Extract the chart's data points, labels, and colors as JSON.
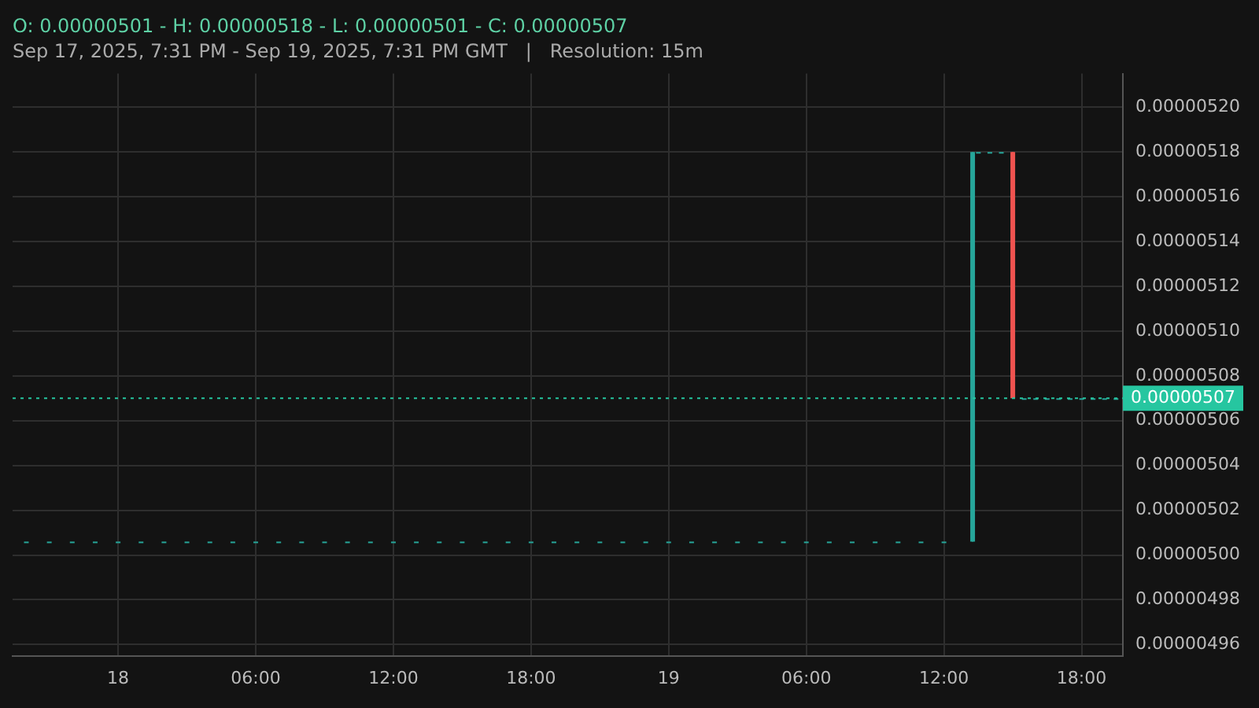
{
  "chart_data": {
    "type": "candlestick",
    "title": "O: 0.00000501 - H: 0.00000518 - L: 0.00000501 - C: 0.00000507",
    "subtitle": "Sep 17, 2025, 7:31 PM - Sep 19, 2025, 7:31 PM GMT   |   Resolution: 15m",
    "x": [
      "2025-09-17T20:00",
      "2025-09-17T21:00",
      "2025-09-17T22:00",
      "2025-09-17T23:00",
      "2025-09-18T00:00",
      "2025-09-18T01:00",
      "2025-09-18T02:00",
      "2025-09-18T03:00",
      "2025-09-18T04:00",
      "2025-09-18T05:00",
      "2025-09-18T06:00",
      "2025-09-18T07:00",
      "2025-09-18T08:00",
      "2025-09-18T09:00",
      "2025-09-18T10:00",
      "2025-09-18T11:00",
      "2025-09-18T12:00",
      "2025-09-18T13:00",
      "2025-09-18T14:00",
      "2025-09-18T15:00",
      "2025-09-18T16:00",
      "2025-09-18T17:00",
      "2025-09-18T18:00",
      "2025-09-18T19:00",
      "2025-09-18T20:00",
      "2025-09-18T21:00",
      "2025-09-18T22:00",
      "2025-09-18T23:00",
      "2025-09-19T00:00",
      "2025-09-19T01:00",
      "2025-09-19T02:00",
      "2025-09-19T03:00",
      "2025-09-19T04:00",
      "2025-09-19T05:00",
      "2025-09-19T06:00",
      "2025-09-19T07:00",
      "2025-09-19T08:00",
      "2025-09-19T09:00",
      "2025-09-19T10:00",
      "2025-09-19T11:00",
      "2025-09-19T12:00",
      "2025-09-19T13:15",
      "2025-09-19T13:30",
      "2025-09-19T14:00",
      "2025-09-19T14:30",
      "2025-09-19T15:00",
      "2025-09-19T15:30",
      "2025-09-19T16:00",
      "2025-09-19T16:30",
      "2025-09-19T17:00",
      "2025-09-19T17:30",
      "2025-09-19T18:00",
      "2025-09-19T18:30",
      "2025-09-19T19:00",
      "2025-09-19T19:30"
    ],
    "ohlc": [
      [
        5.006e-06,
        5.006e-06,
        5.006e-06,
        5.006e-06
      ],
      [
        5.006e-06,
        5.006e-06,
        5.006e-06,
        5.006e-06
      ],
      [
        5.006e-06,
        5.006e-06,
        5.006e-06,
        5.006e-06
      ],
      [
        5.006e-06,
        5.006e-06,
        5.006e-06,
        5.006e-06
      ],
      [
        5.006e-06,
        5.006e-06,
        5.006e-06,
        5.006e-06
      ],
      [
        5.006e-06,
        5.006e-06,
        5.006e-06,
        5.006e-06
      ],
      [
        5.006e-06,
        5.006e-06,
        5.006e-06,
        5.006e-06
      ],
      [
        5.006e-06,
        5.006e-06,
        5.006e-06,
        5.006e-06
      ],
      [
        5.006e-06,
        5.006e-06,
        5.006e-06,
        5.006e-06
      ],
      [
        5.006e-06,
        5.006e-06,
        5.006e-06,
        5.006e-06
      ],
      [
        5.006e-06,
        5.006e-06,
        5.006e-06,
        5.006e-06
      ],
      [
        5.006e-06,
        5.006e-06,
        5.006e-06,
        5.006e-06
      ],
      [
        5.006e-06,
        5.006e-06,
        5.006e-06,
        5.006e-06
      ],
      [
        5.006e-06,
        5.006e-06,
        5.006e-06,
        5.006e-06
      ],
      [
        5.006e-06,
        5.006e-06,
        5.006e-06,
        5.006e-06
      ],
      [
        5.006e-06,
        5.006e-06,
        5.006e-06,
        5.006e-06
      ],
      [
        5.006e-06,
        5.006e-06,
        5.006e-06,
        5.006e-06
      ],
      [
        5.006e-06,
        5.006e-06,
        5.006e-06,
        5.006e-06
      ],
      [
        5.006e-06,
        5.006e-06,
        5.006e-06,
        5.006e-06
      ],
      [
        5.006e-06,
        5.006e-06,
        5.006e-06,
        5.006e-06
      ],
      [
        5.006e-06,
        5.006e-06,
        5.006e-06,
        5.006e-06
      ],
      [
        5.006e-06,
        5.006e-06,
        5.006e-06,
        5.006e-06
      ],
      [
        5.006e-06,
        5.006e-06,
        5.006e-06,
        5.006e-06
      ],
      [
        5.006e-06,
        5.006e-06,
        5.006e-06,
        5.006e-06
      ],
      [
        5.006e-06,
        5.006e-06,
        5.006e-06,
        5.006e-06
      ],
      [
        5.006e-06,
        5.006e-06,
        5.006e-06,
        5.006e-06
      ],
      [
        5.006e-06,
        5.006e-06,
        5.006e-06,
        5.006e-06
      ],
      [
        5.006e-06,
        5.006e-06,
        5.006e-06,
        5.006e-06
      ],
      [
        5.006e-06,
        5.006e-06,
        5.006e-06,
        5.006e-06
      ],
      [
        5.006e-06,
        5.006e-06,
        5.006e-06,
        5.006e-06
      ],
      [
        5.006e-06,
        5.006e-06,
        5.006e-06,
        5.006e-06
      ],
      [
        5.006e-06,
        5.006e-06,
        5.006e-06,
        5.006e-06
      ],
      [
        5.006e-06,
        5.006e-06,
        5.006e-06,
        5.006e-06
      ],
      [
        5.006e-06,
        5.006e-06,
        5.006e-06,
        5.006e-06
      ],
      [
        5.006e-06,
        5.006e-06,
        5.006e-06,
        5.006e-06
      ],
      [
        5.006e-06,
        5.006e-06,
        5.006e-06,
        5.006e-06
      ],
      [
        5.006e-06,
        5.006e-06,
        5.006e-06,
        5.006e-06
      ],
      [
        5.006e-06,
        5.006e-06,
        5.006e-06,
        5.006e-06
      ],
      [
        5.006e-06,
        5.006e-06,
        5.006e-06,
        5.006e-06
      ],
      [
        5.006e-06,
        5.006e-06,
        5.006e-06,
        5.006e-06
      ],
      [
        5.006e-06,
        5.006e-06,
        5.006e-06,
        5.006e-06
      ],
      [
        5.006e-06,
        5.18e-06,
        5.006e-06,
        5.18e-06
      ],
      [
        5.18e-06,
        5.18e-06,
        5.18e-06,
        5.18e-06
      ],
      [
        5.18e-06,
        5.18e-06,
        5.18e-06,
        5.18e-06
      ],
      [
        5.18e-06,
        5.18e-06,
        5.18e-06,
        5.18e-06
      ],
      [
        5.18e-06,
        5.18e-06,
        5.07e-06,
        5.07e-06
      ],
      [
        5.07e-06,
        5.07e-06,
        5.07e-06,
        5.07e-06
      ],
      [
        5.07e-06,
        5.07e-06,
        5.07e-06,
        5.07e-06
      ],
      [
        5.07e-06,
        5.07e-06,
        5.07e-06,
        5.07e-06
      ],
      [
        5.07e-06,
        5.07e-06,
        5.07e-06,
        5.07e-06
      ],
      [
        5.07e-06,
        5.07e-06,
        5.07e-06,
        5.07e-06
      ],
      [
        5.07e-06,
        5.07e-06,
        5.07e-06,
        5.07e-06
      ],
      [
        5.07e-06,
        5.07e-06,
        5.07e-06,
        5.07e-06
      ],
      [
        5.07e-06,
        5.07e-06,
        5.07e-06,
        5.07e-06
      ],
      [
        5.07e-06,
        5.07e-06,
        5.07e-06,
        5.07e-06
      ]
    ],
    "colors": [
      "#26a69a",
      "#26a69a",
      "#26a69a",
      "#26a69a",
      "#26a69a",
      "#26a69a",
      "#26a69a",
      "#26a69a",
      "#26a69a",
      "#26a69a",
      "#26a69a",
      "#26a69a",
      "#26a69a",
      "#26a69a",
      "#26a69a",
      "#26a69a",
      "#26a69a",
      "#26a69a",
      "#26a69a",
      "#26a69a",
      "#26a69a",
      "#26a69a",
      "#26a69a",
      "#26a69a",
      "#26a69a",
      "#26a69a",
      "#26a69a",
      "#26a69a",
      "#26a69a",
      "#26a69a",
      "#26a69a",
      "#26a69a",
      "#26a69a",
      "#26a69a",
      "#26a69a",
      "#26a69a",
      "#26a69a",
      "#26a69a",
      "#26a69a",
      "#26a69a",
      "#26a69a",
      "#26a69a",
      "#26a69a",
      "#26a69a",
      "#26a69a",
      "#ef5350",
      "#26a69a",
      "#26a69a",
      "#26a69a",
      "#26a69a",
      "#26a69a",
      "#26a69a",
      "#26a69a",
      "#26a69a",
      "#26a69a"
    ],
    "xlim": [
      "2025-09-17T19:24",
      "2025-09-19T19:48"
    ],
    "xticks": [
      {
        "value": "2025-09-18T00:00",
        "label": "18"
      },
      {
        "value": "2025-09-18T06:00",
        "label": "06:00"
      },
      {
        "value": "2025-09-18T12:00",
        "label": "12:00"
      },
      {
        "value": "2025-09-18T18:00",
        "label": "18:00"
      },
      {
        "value": "2025-09-19T00:00",
        "label": "19"
      },
      {
        "value": "2025-09-19T06:00",
        "label": "06:00"
      },
      {
        "value": "2025-09-19T12:00",
        "label": "12:00"
      },
      {
        "value": "2025-09-19T18:00",
        "label": "18:00"
      }
    ],
    "ylim": [
      4.955e-06,
      5.215e-06
    ],
    "yticks": [
      {
        "value": 4.96e-06,
        "label": "0.00000496"
      },
      {
        "value": 4.98e-06,
        "label": "0.00000498"
      },
      {
        "value": 5e-06,
        "label": "0.00000500"
      },
      {
        "value": 5.02e-06,
        "label": "0.00000502"
      },
      {
        "value": 5.04e-06,
        "label": "0.00000504"
      },
      {
        "value": 5.06e-06,
        "label": "0.00000506"
      },
      {
        "value": 5.08e-06,
        "label": "0.00000508"
      },
      {
        "value": 5.1e-06,
        "label": "0.00000510"
      },
      {
        "value": 5.12e-06,
        "label": "0.00000512"
      },
      {
        "value": 5.14e-06,
        "label": "0.00000514"
      },
      {
        "value": 5.16e-06,
        "label": "0.00000516"
      },
      {
        "value": 5.18e-06,
        "label": "0.00000518"
      },
      {
        "value": 5.2e-06,
        "label": "0.00000520"
      }
    ],
    "ref_lines": [
      {
        "axis": "y",
        "value": 5.07e-06,
        "label": "0.00000507",
        "color": "#26c6a0",
        "line_style": "dotted"
      }
    ],
    "grid": true,
    "legend": false
  }
}
